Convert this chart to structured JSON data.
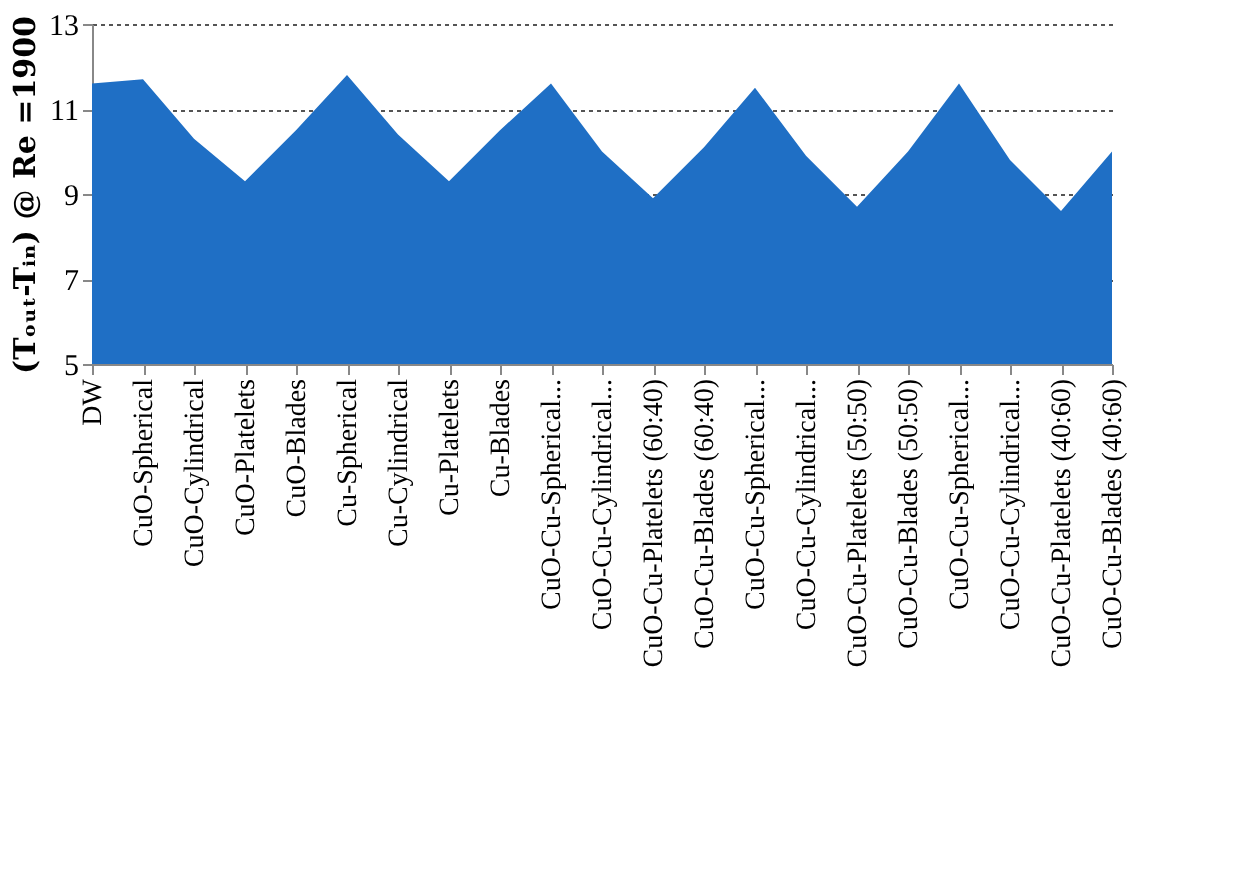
{
  "chart_data": {
    "type": "area",
    "ylabel": "(Tₒᵤₜ-Tᵢₙ) @ Re =1900",
    "categories": [
      "DW",
      "CuO-Spherical",
      "CuO-Cylindrical",
      "CuO-Platelets",
      "CuO-Blades",
      "Cu-Spherical",
      "Cu-Cylindrical",
      "Cu-Platelets",
      "Cu-Blades",
      "CuO-Cu-Spherical...",
      "CuO-Cu-Cylindrical...",
      "CuO-Cu-Platelets (60:40)",
      "CuO-Cu-Blades (60:40)",
      "CuO-Cu-Spherical...",
      "CuO-Cu-Cylindrical...",
      "CuO-Cu-Platelets (50:50)",
      "CuO-Cu-Blades (50:50)",
      "CuO-Cu-Spherical...",
      "CuO-Cu-Cylindrical...",
      "CuO-Cu-Platelets (40:60)",
      "CuO-Cu-Blades (40:60)"
    ],
    "series": [
      {
        "color": "#1f6fc5",
        "values": [
          11.6,
          11.7,
          10.3,
          9.3,
          10.5,
          11.8,
          10.4,
          9.3,
          10.5,
          11.6,
          10.0,
          8.9,
          10.1,
          11.5,
          9.9,
          8.7,
          10.0,
          11.6,
          9.8,
          8.6,
          10.0
        ]
      }
    ],
    "ylim": [
      5,
      13
    ],
    "yticks": [
      5,
      7,
      9,
      11,
      13
    ],
    "grid": "y"
  }
}
